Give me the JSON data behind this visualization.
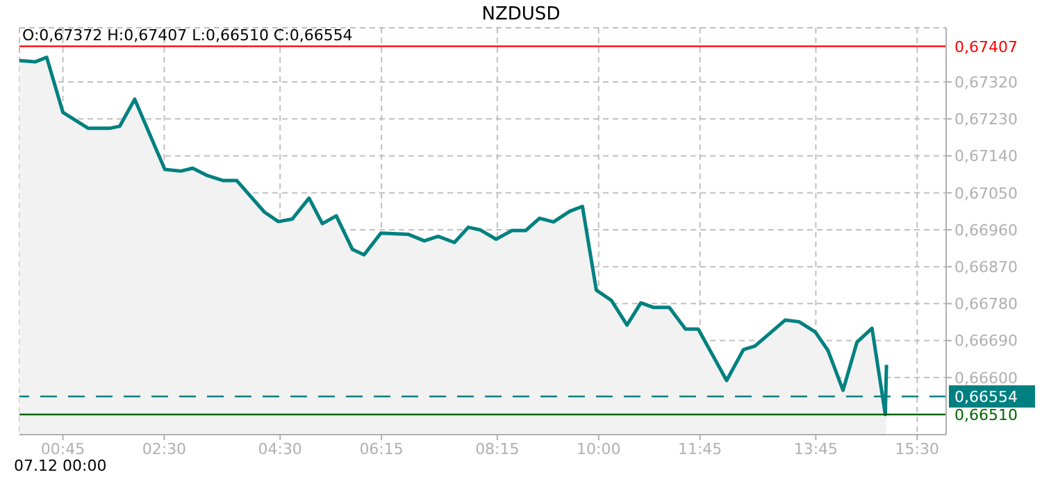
{
  "chart_data": {
    "type": "area",
    "title": "NZDUSD",
    "annotations": [
      "O:0,67372 H:0,67407 L:0,66510 C:0,66554",
      "07.12 00:00"
    ],
    "x": [
      0,
      0.27,
      0.47,
      0.75,
      1.19,
      1.55,
      1.73,
      1.99,
      2.51,
      2.79,
      2.99,
      3.23,
      3.51,
      3.75,
      4.23,
      4.47,
      4.71,
      5.0,
      5.23,
      5.47,
      5.75,
      5.95,
      6.24,
      6.71,
      6.99,
      7.23,
      7.51,
      7.75,
      7.95,
      8.23,
      8.5,
      8.74,
      8.98,
      9.22,
      9.5,
      9.72,
      9.96,
      10.22,
      10.49,
      10.73,
      10.94,
      11.22,
      11.5,
      11.72,
      12.21,
      12.5,
      12.7,
      13.22,
      13.46,
      13.74,
      13.96,
      14.22,
      14.46,
      14.72,
      14.95,
      14.97
    ],
    "series": [
      {
        "color": "#008080",
        "values": [
          0.67372,
          0.67369,
          0.6738,
          0.67246,
          0.67207,
          0.67207,
          0.67212,
          0.67278,
          0.67107,
          0.67103,
          0.6711,
          0.67093,
          0.6708,
          0.6708,
          0.67003,
          0.6698,
          0.66986,
          0.67037,
          0.66975,
          0.66994,
          0.66912,
          0.66899,
          0.66952,
          0.66949,
          0.66933,
          0.66944,
          0.66929,
          0.66966,
          0.6696,
          0.66937,
          0.66958,
          0.66958,
          0.66988,
          0.66979,
          0.67005,
          0.67017,
          0.66813,
          0.66788,
          0.66728,
          0.66782,
          0.66771,
          0.66771,
          0.66718,
          0.66718,
          0.66593,
          0.66668,
          0.66677,
          0.6674,
          0.66736,
          0.66711,
          0.66666,
          0.66569,
          0.66686,
          0.6672,
          0.6651,
          0.66631
        ]
      }
    ],
    "xlim": [
      0,
      16
    ],
    "xticks": [
      {
        "value": 0.75,
        "label": "00:45"
      },
      {
        "value": 2.5,
        "label": "02:30"
      },
      {
        "value": 4.5,
        "label": "04:30"
      },
      {
        "value": 6.25,
        "label": "06:15"
      },
      {
        "value": 8.25,
        "label": "08:15"
      },
      {
        "value": 10,
        "label": "10:00"
      },
      {
        "value": 11.75,
        "label": "11:45"
      },
      {
        "value": 13.75,
        "label": "13:45"
      },
      {
        "value": 15.5,
        "label": "15:30"
      }
    ],
    "ylim": [
      0.66461,
      0.67452
    ],
    "yticks": [
      {
        "value": 0.666,
        "label": "0,66600"
      },
      {
        "value": 0.6669,
        "label": "0,66690"
      },
      {
        "value": 0.6678,
        "label": "0,66780"
      },
      {
        "value": 0.6687,
        "label": "0,66870"
      },
      {
        "value": 0.6696,
        "label": "0,66960"
      },
      {
        "value": 0.6705,
        "label": "0,67050"
      },
      {
        "value": 0.6714,
        "label": "0,67140"
      },
      {
        "value": 0.6723,
        "label": "0,67230"
      },
      {
        "value": 0.6732,
        "label": "0,67320"
      }
    ],
    "ref_lines": [
      {
        "axis": "y",
        "value": 0.67407,
        "label": "0,67407",
        "color": "#ff0000",
        "line_style": "solid"
      },
      {
        "axis": "y",
        "value": 0.6651,
        "label": "0,66510",
        "color": "#006400",
        "line_style": "solid"
      },
      {
        "axis": "y",
        "value": 0.66554,
        "label": "0,66554",
        "color": "#008080",
        "line_style": "dashed"
      }
    ],
    "grid": true
  }
}
